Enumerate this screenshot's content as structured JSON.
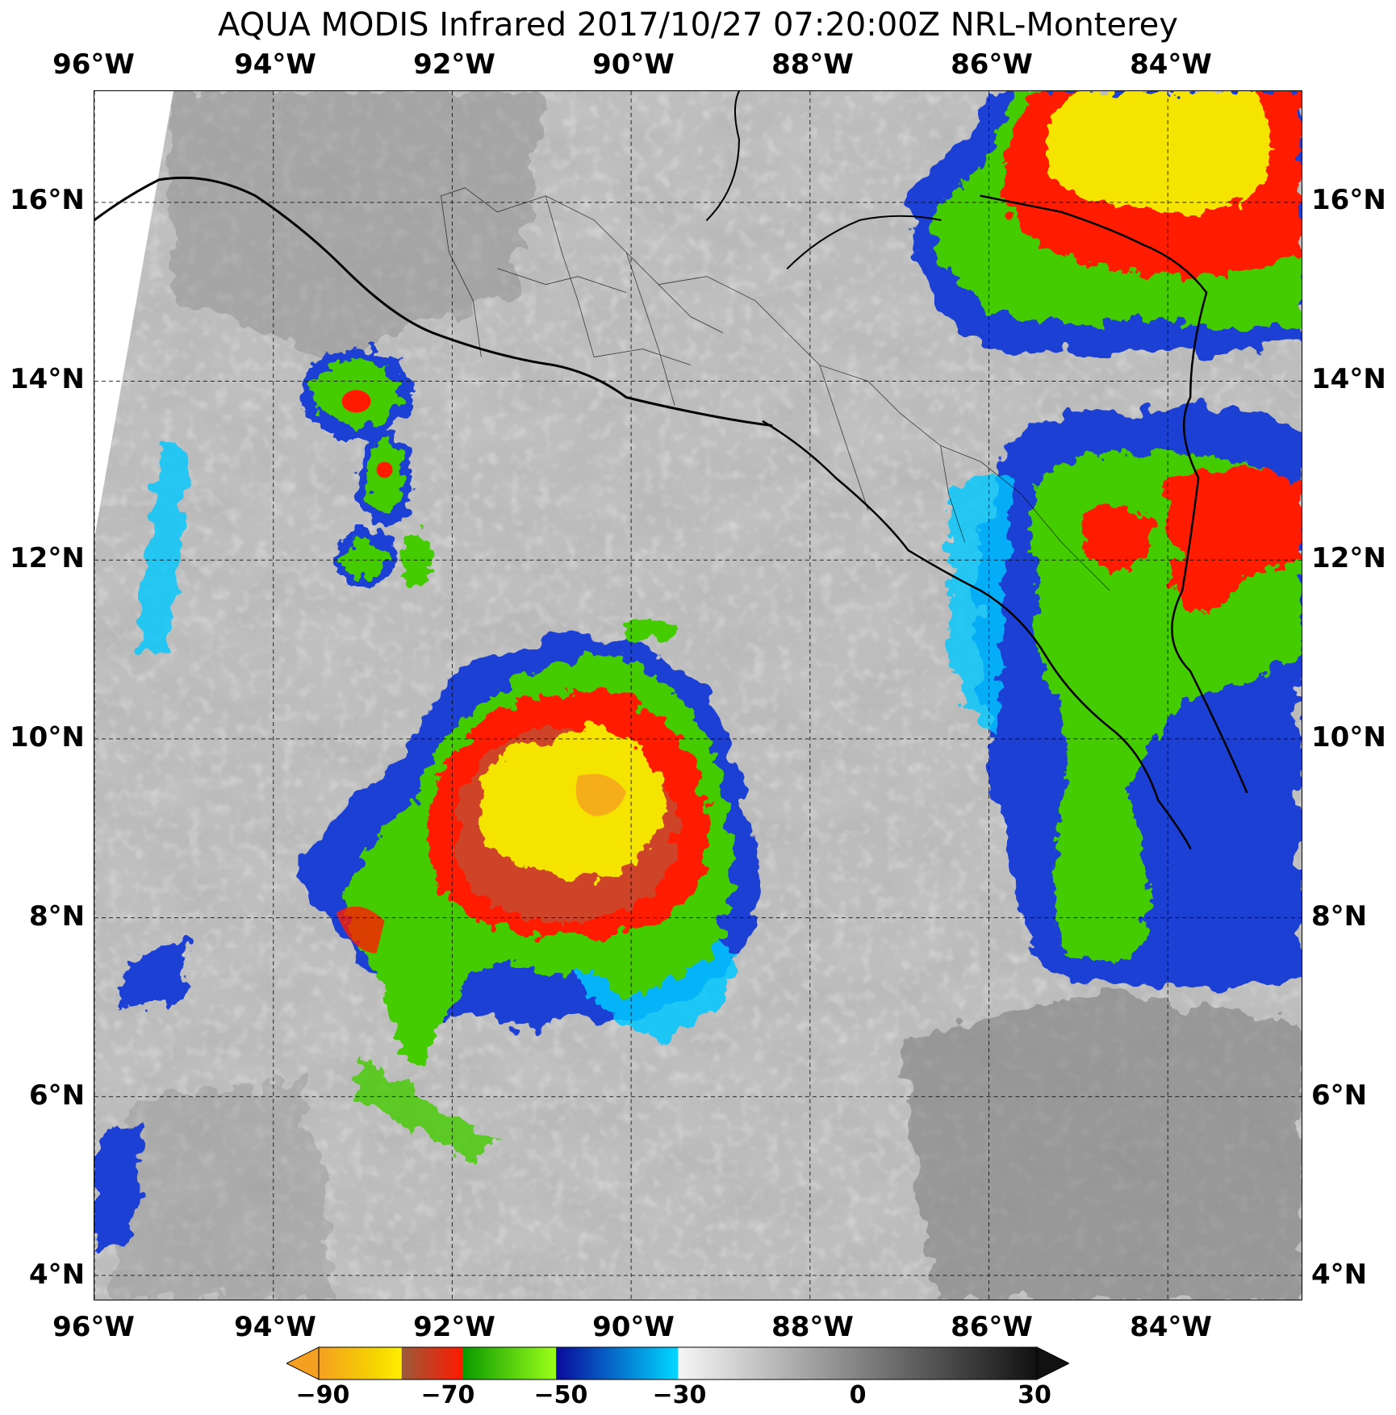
{
  "title": "AQUA MODIS Infrared 2017/10/27 07:20:00Z NRL-Monterey",
  "map": {
    "type": "satellite infrared image",
    "lon_range": [
      -96,
      -82.5
    ],
    "lat_range": [
      3.8,
      17.3
    ],
    "lon_ticks": [
      "96°W",
      "94°W",
      "92°W",
      "90°W",
      "88°W",
      "86°W",
      "84°W"
    ],
    "lat_ticks": [
      "16°N",
      "14°N",
      "12°N",
      "10°N",
      "8°N",
      "6°N",
      "4°N"
    ],
    "colors": {
      "very_cold": "#f5e400",
      "cold": "#ff1a00",
      "medium": "#44cc00",
      "cool": "#1a3fd4",
      "mild": "#00c8ff",
      "cloud_light": "#dcdcdc",
      "cloud_dark": "#8a8a8a"
    },
    "features": [
      "convective-system-main",
      "convective-system-northeast",
      "convective-system-east",
      "small-cells-northwest"
    ]
  },
  "colorbar": {
    "tick_labels": [
      "−90",
      "−70",
      "−50",
      "−30",
      "0",
      "30"
    ],
    "range": [
      -90,
      30
    ],
    "stops": [
      {
        "value": -90,
        "color": "#f5a020"
      },
      {
        "value": -80,
        "color": "#ffee00"
      },
      {
        "value": -78,
        "color": "#a55a3a"
      },
      {
        "value": -70,
        "color": "#ff1a00"
      },
      {
        "value": -69,
        "color": "#0a9a00"
      },
      {
        "value": -50,
        "color": "#9cff1a"
      },
      {
        "value": -49,
        "color": "#0a0a9a"
      },
      {
        "value": -30,
        "color": "#00d8ff"
      },
      {
        "value": -29,
        "color": "#f4f4f4"
      },
      {
        "value": 30,
        "color": "#111111"
      }
    ]
  }
}
